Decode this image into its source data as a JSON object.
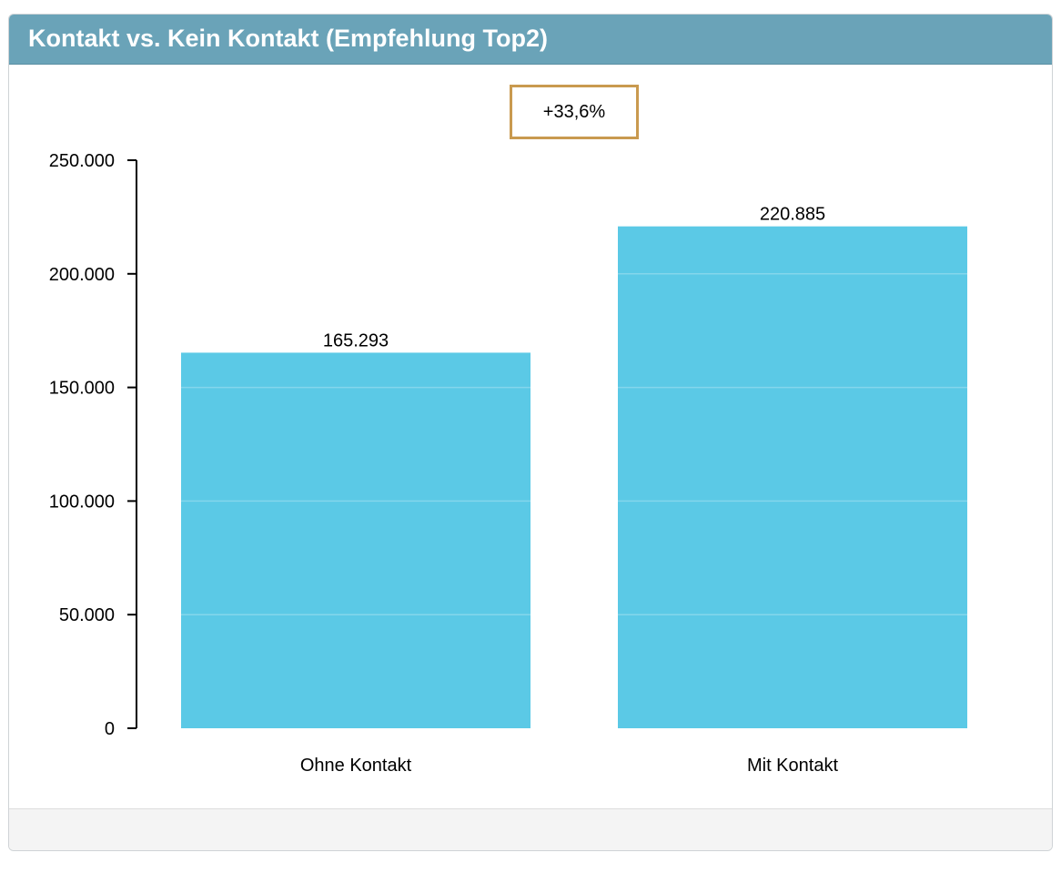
{
  "panel": {
    "title": "Kontakt vs. Kein Kontakt (Empfehlung Top2)"
  },
  "annotation": {
    "label": "+33,6%"
  },
  "colors": {
    "header": "#6aa3b8",
    "bar": "#5bc9e6",
    "annotation_border": "#c99a4f",
    "footer": "#f4f4f4"
  },
  "chart_data": {
    "type": "bar",
    "title": "Kontakt vs. Kein Kontakt (Empfehlung Top2)",
    "categories": [
      "Ohne Kontakt",
      "Mit Kontakt"
    ],
    "values": [
      165293,
      220885
    ],
    "value_labels": [
      "165.293",
      "220.885"
    ],
    "ylim": [
      0,
      250000
    ],
    "yticks": [
      0,
      50000,
      100000,
      150000,
      200000,
      250000
    ],
    "ytick_labels": [
      "0",
      "50.000",
      "100.000",
      "150.000",
      "200.000",
      "250.000"
    ],
    "xlabel": "",
    "ylabel": "",
    "grid": false,
    "legend": "none",
    "annotation": "+33,6%"
  }
}
